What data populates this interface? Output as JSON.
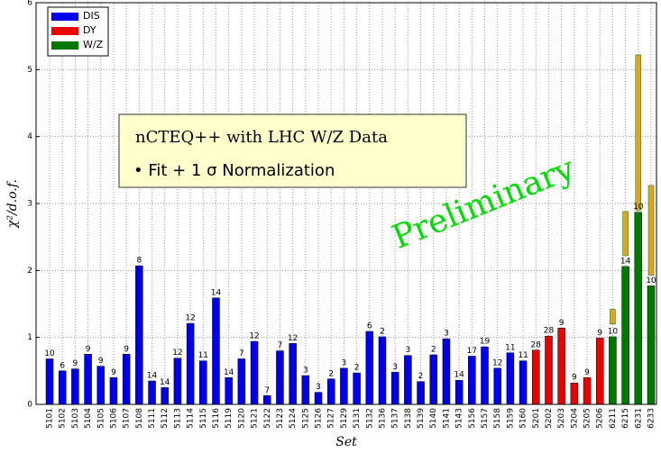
{
  "chart_data": {
    "type": "bar",
    "ylabel": "χ²/d.o.f.",
    "xlabel": "Set",
    "ylim": [
      0,
      6
    ],
    "yticks": [
      0,
      1,
      2,
      3,
      4,
      5,
      6
    ],
    "grid": true,
    "legend": "upper left",
    "annotation_title": "nCTEQ++  with LHC  W/Z Data",
    "annotation_bullet": "• Fit + 1 σ Normalization",
    "watermark": "Preliminary",
    "watermark_color": "#00dd00",
    "series": [
      {
        "name": "DIS",
        "color": "#0000ee",
        "categories": [
          "5101",
          "5102",
          "5103",
          "5104",
          "5105",
          "5106",
          "5107",
          "5108",
          "5111",
          "5112",
          "5113",
          "5114",
          "5115",
          "5116",
          "5119",
          "5120",
          "5121",
          "5122",
          "5123",
          "5124",
          "5125",
          "5126",
          "5127",
          "5129",
          "5131",
          "5132",
          "5136",
          "5137",
          "5138",
          "5139",
          "5140",
          "5141",
          "5143",
          "5156",
          "5157",
          "5158",
          "5159",
          "5160"
        ],
        "values": [
          0.68,
          0.5,
          0.53,
          0.75,
          0.57,
          0.4,
          0.75,
          2.07,
          0.35,
          0.25,
          0.69,
          1.21,
          0.65,
          1.59,
          0.4,
          0.68,
          0.94,
          0.13,
          0.8,
          0.91,
          0.43,
          0.18,
          0.38,
          0.54,
          0.47,
          1.09,
          1.01,
          0.48,
          0.73,
          0.34,
          0.74,
          0.98,
          0.36,
          0.72,
          0.86,
          0.54,
          0.77,
          0.65
        ],
        "bar_labels": [
          "10",
          "6",
          "9",
          "9",
          "9",
          "9",
          "9",
          "8",
          "14",
          "14",
          "12",
          "12",
          "11",
          "14",
          "14",
          "7",
          "12",
          "7",
          "7",
          "12",
          "3",
          "3",
          "2",
          "3",
          "2",
          "6",
          "2",
          "3",
          "3",
          "2",
          "2",
          "3",
          "14",
          "17",
          "19",
          "12",
          "11",
          "11"
        ]
      },
      {
        "name": "DY",
        "color": "#ee0000",
        "categories": [
          "5201",
          "5202",
          "5203",
          "5204",
          "5205",
          "5206"
        ],
        "values": [
          0.81,
          1.02,
          1.14,
          0.32,
          0.4,
          0.99
        ],
        "bar_labels": [
          "28",
          "28",
          "9",
          "9",
          "9",
          "9"
        ]
      },
      {
        "name": "W/Z",
        "color": "#007700",
        "categories": [
          "6211",
          "6215",
          "6231",
          "6233"
        ],
        "values": [
          1.01,
          2.06,
          2.87,
          1.77
        ],
        "bar_labels": [
          "10",
          "14",
          "10",
          "10"
        ],
        "ranges": [
          [
            1.2,
            1.42
          ],
          [
            2.22,
            2.88
          ],
          [
            2.9,
            5.22
          ],
          [
            1.93,
            3.27
          ]
        ],
        "range_color": "#e8a020"
      }
    ]
  }
}
